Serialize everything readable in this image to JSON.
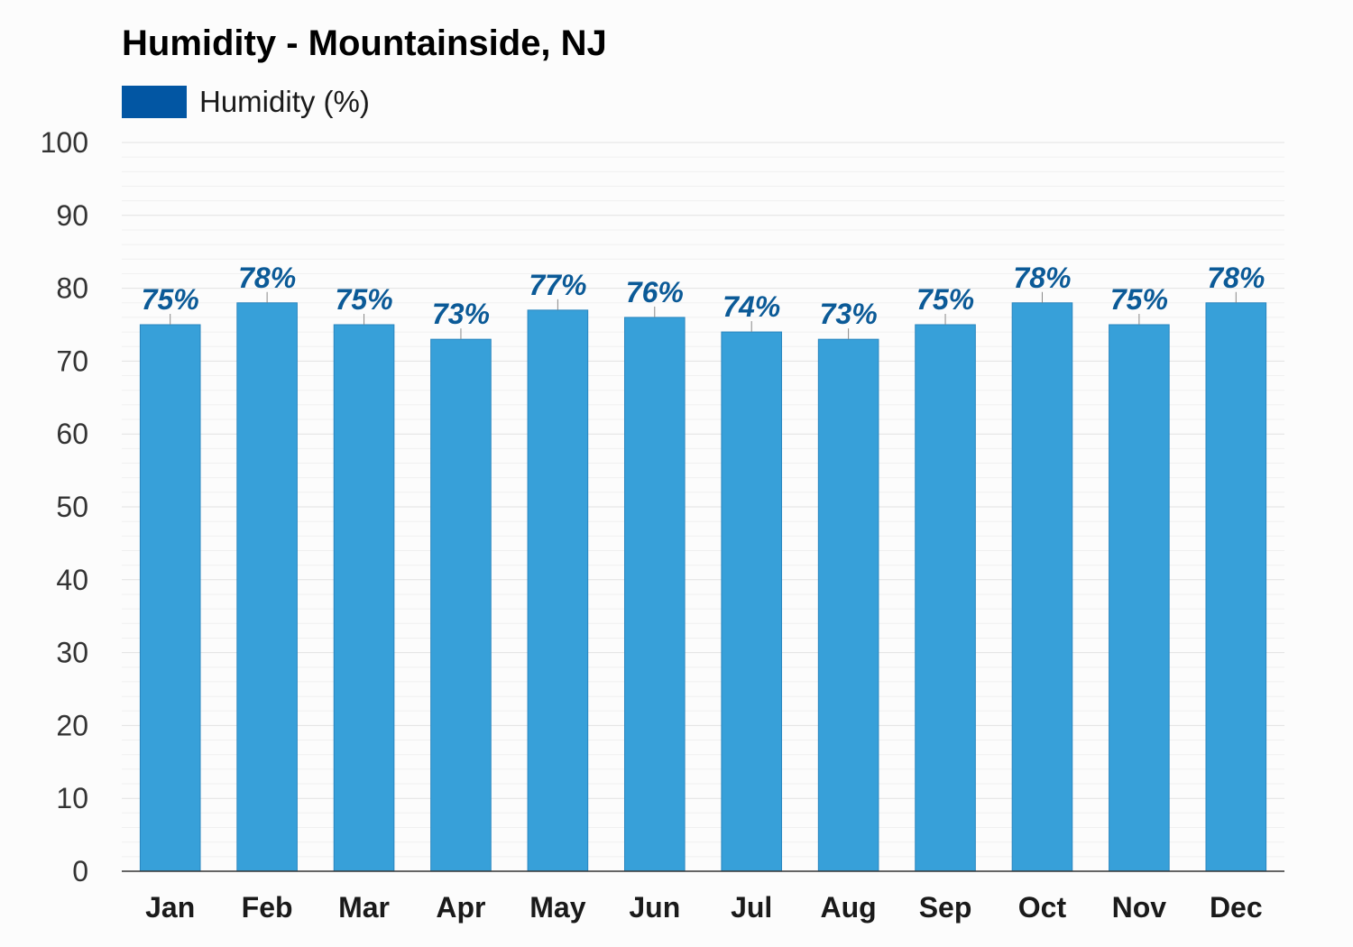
{
  "chart_data": {
    "type": "bar",
    "title": "Humidity - Mountainside, NJ",
    "categories": [
      "Jan",
      "Feb",
      "Mar",
      "Apr",
      "May",
      "Jun",
      "Jul",
      "Aug",
      "Sep",
      "Oct",
      "Nov",
      "Dec"
    ],
    "series": [
      {
        "name": "Humidity (%)",
        "values": [
          75,
          78,
          75,
          73,
          77,
          76,
          74,
          73,
          75,
          78,
          75,
          78
        ],
        "labels": [
          "75%",
          "78%",
          "75%",
          "73%",
          "77%",
          "76%",
          "74%",
          "73%",
          "75%",
          "78%",
          "75%",
          "78%"
        ]
      }
    ],
    "ylim": [
      0,
      100
    ],
    "yticks": [
      "0",
      "10",
      "20",
      "30",
      "40",
      "50",
      "60",
      "70",
      "80",
      "90",
      "100"
    ],
    "xlabel": "",
    "ylabel": "",
    "grid": true,
    "legend_position": "top-left",
    "colors": {
      "bar_fill": "#37a0d9",
      "bar_stroke": "#2a86bf",
      "legend_swatch": "#0256a3",
      "data_label": "#0b5a97",
      "grid_major": "#e2e2e2",
      "grid_minor": "#f0f0f0"
    }
  }
}
